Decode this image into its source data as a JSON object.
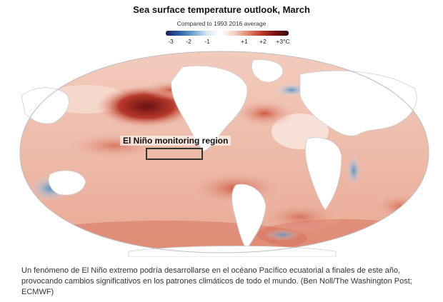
{
  "map": {
    "title": "Sea surface temperature outlook, March",
    "subtitle": "Compared to 1993 2016 average",
    "legend": {
      "ticks": [
        "-3",
        "-2",
        "-1",
        "+1",
        "+2",
        "+3°C"
      ],
      "colors": [
        "#1d1f5c",
        "#2c5fa8",
        "#6aa3d0",
        "#d6e6f2",
        "#ffffff",
        "#f4d3c6",
        "#e08a6e",
        "#c0392b",
        "#7a1212",
        "#3a0808"
      ]
    },
    "region_label": "El Niño monitoring region",
    "colors": {
      "warm_light": "#f3d0c3",
      "warm_mid": "#e39a82",
      "warm_strong": "#c24a38",
      "warm_extreme": "#7d1a1a",
      "cool_light": "#cfe1ee",
      "cool_mid": "#7fa9cc",
      "land": "#ffffff",
      "coast": "#cfcfcf"
    }
  },
  "caption": "Un fenómeno de El Niño extremo podría desarrollarse en el océano Pacífico ecuatorial a finales de este año, provocando cambios significativos en los patrones climáticos de todo el mundo. (Ben Noll/The Washington Post; ECMWF)"
}
